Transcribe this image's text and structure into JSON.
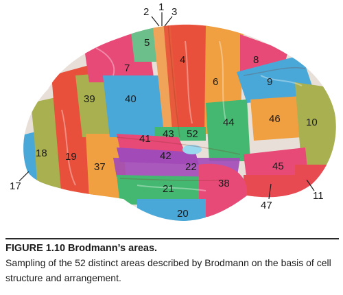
{
  "figure": {
    "areas": [
      {
        "label": "1",
        "color": "#e85a3c"
      },
      {
        "label": "2",
        "color": "#f0a45a"
      },
      {
        "label": "3",
        "color": "#e85a3c"
      },
      {
        "label": "4",
        "color": "#e8503c"
      },
      {
        "label": "5",
        "color": "#6cbf8a"
      },
      {
        "label": "6",
        "color": "#f0a040"
      },
      {
        "label": "7",
        "color": "#e84a78"
      },
      {
        "label": "8",
        "color": "#e84a78"
      },
      {
        "label": "9",
        "color": "#4aa8d8"
      },
      {
        "label": "10",
        "color": "#a8b050"
      },
      {
        "label": "11",
        "color": "#e84a52"
      },
      {
        "label": "17",
        "color": "#4aa8d8"
      },
      {
        "label": "18",
        "color": "#a8b050"
      },
      {
        "label": "19",
        "color": "#e8503c"
      },
      {
        "label": "20",
        "color": "#4aa8d8"
      },
      {
        "label": "21",
        "color": "#44b870"
      },
      {
        "label": "22",
        "color": "#a24ab8"
      },
      {
        "label": "37",
        "color": "#f0a040"
      },
      {
        "label": "38",
        "color": "#e84a78"
      },
      {
        "label": "39",
        "color": "#a8b050"
      },
      {
        "label": "40",
        "color": "#4aa8d8"
      },
      {
        "label": "41",
        "color": "#e84a78"
      },
      {
        "label": "42",
        "color": "#a24ab8"
      },
      {
        "label": "43",
        "color": "#44b870"
      },
      {
        "label": "44",
        "color": "#44b870"
      },
      {
        "label": "45",
        "color": "#e84a78"
      },
      {
        "label": "46",
        "color": "#f0a040"
      },
      {
        "label": "47",
        "color": "#e84a52"
      },
      {
        "label": "52",
        "color": "#9ad8f0"
      }
    ]
  },
  "caption": {
    "title": "FIGURE 1.10  Brodmann’s areas.",
    "body": "Sampling of the 52 distinct areas described by Brodmann on the basis of cell structure and arrangement."
  }
}
